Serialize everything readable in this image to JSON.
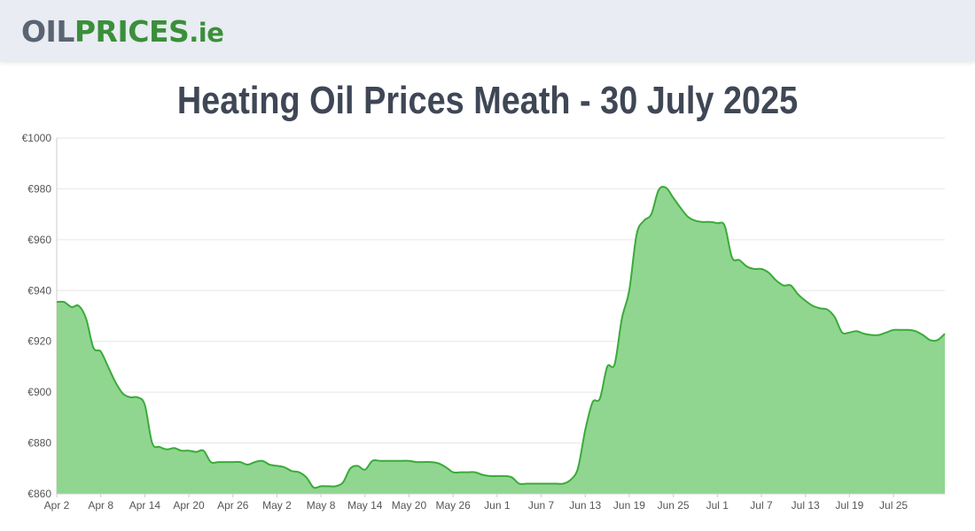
{
  "header": {
    "logo_part1": "OIL",
    "logo_part2": "PRICES",
    "logo_part3": ".ie"
  },
  "page_title": "Heating Oil Prices Meath - 30 July 2025",
  "colors": {
    "line": "#3aab3a",
    "fill": "#90d690",
    "grid": "#e6e6e6"
  },
  "chart_data": {
    "type": "area",
    "title": "Heating Oil Prices Meath - 30 July 2025",
    "xlabel": "",
    "ylabel": "",
    "ylim": [
      860,
      1000
    ],
    "grid": true,
    "yticks": [
      "€1000",
      "€980",
      "€960",
      "€940",
      "€920",
      "€900",
      "€880",
      "€860"
    ],
    "ytick_values": [
      1000,
      980,
      960,
      940,
      920,
      900,
      880,
      860
    ],
    "xticks": [
      "Apr 2",
      "Apr 8",
      "Apr 14",
      "Apr 20",
      "Apr 26",
      "May 2",
      "May 8",
      "May 14",
      "May 20",
      "May 26",
      "Jun 1",
      "Jun 7",
      "Jun 13",
      "Jun 19",
      "Jun 25",
      "Jul 1",
      "Jul 7",
      "Jul 13",
      "Jul 19",
      "Jul 25"
    ],
    "x_days_first": "2025-04-02",
    "x_days_last": "2025-07-30",
    "series": [
      {
        "values": [
          935.5,
          935.5,
          933.5,
          934,
          929,
          917.5,
          916,
          910,
          904,
          899.5,
          898,
          898,
          895,
          880,
          878.5,
          877.5,
          878,
          877,
          877,
          876.5,
          877,
          872.5,
          872.5,
          872.5,
          872.5,
          872.5,
          871.5,
          872.5,
          873,
          871.5,
          871,
          870.5,
          869,
          868.5,
          866.5,
          862.5,
          863,
          863,
          863,
          864.5,
          870,
          871,
          869.5,
          873,
          873,
          873,
          873,
          873,
          873,
          872.5,
          872.5,
          872.5,
          872,
          870.5,
          868.5,
          868.5,
          868.5,
          868.5,
          867.5,
          867,
          867,
          867,
          866.5,
          864,
          864,
          864,
          864,
          864,
          864,
          864,
          865.5,
          870,
          885,
          896,
          897.5,
          910,
          911,
          929,
          940,
          962,
          967.5,
          970,
          979.5,
          980.5,
          976.5,
          972.5,
          969,
          967.5,
          967,
          967,
          966.5,
          965.5,
          953,
          952,
          949.5,
          948.5,
          948.5,
          947,
          944,
          942,
          942,
          938.5,
          936,
          934,
          933,
          932.5,
          929.5,
          923.5,
          923.5,
          924,
          923,
          922.5,
          922.5,
          923.5,
          924.5,
          924.5,
          924.5,
          924,
          922.5,
          920.5,
          920.5,
          923
        ]
      }
    ]
  }
}
